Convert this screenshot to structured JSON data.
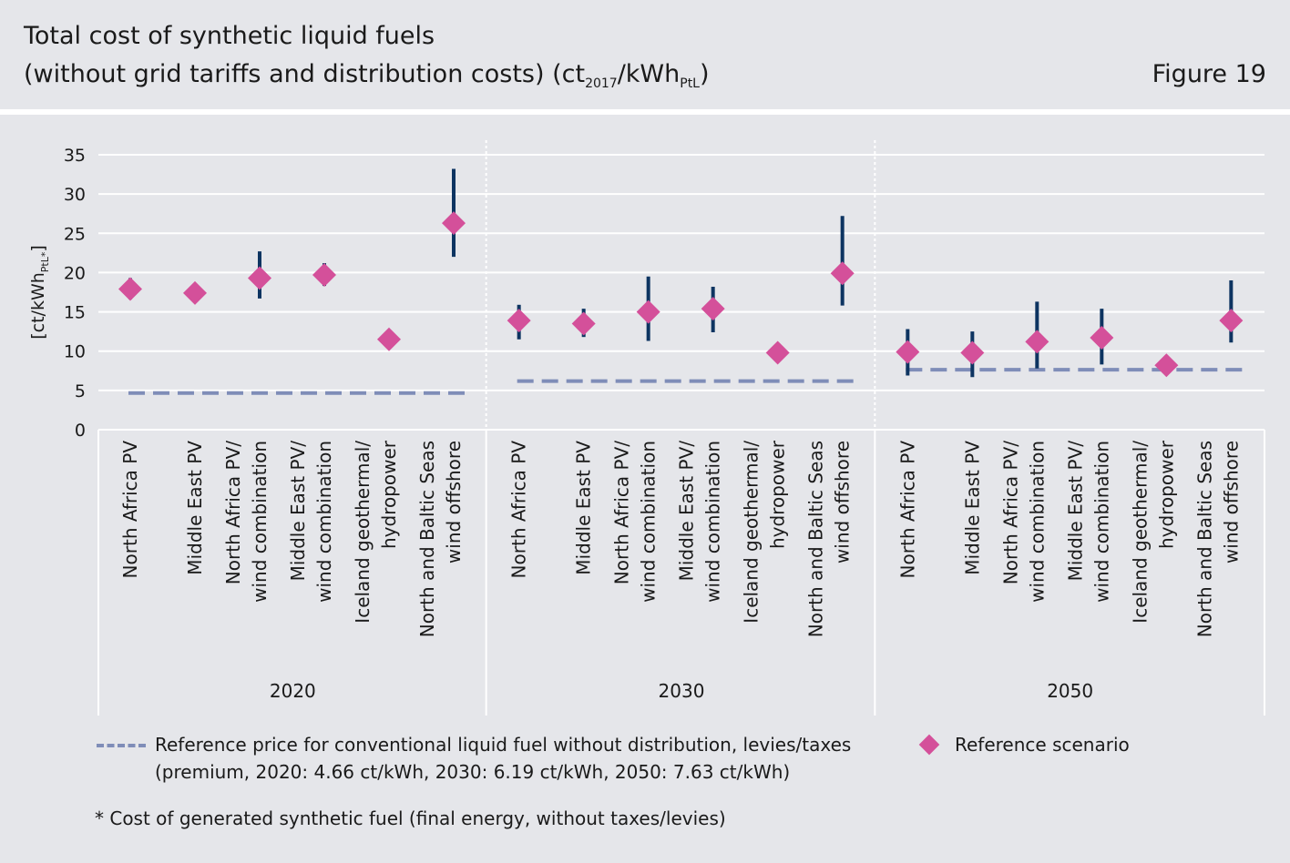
{
  "header": {
    "title_line1": "Total cost of synthetic liquid fuels",
    "title_line2_main": "(without grid tariffs and distribution costs) (ct",
    "title_line2_sub1": "2017",
    "title_line2_mid": "/kWh",
    "title_line2_sub2": "PtL",
    "title_line2_end": ")",
    "figure_label": "Figure 19"
  },
  "chart_data": {
    "type": "scatter",
    "ylabel": "[ct/kWhPtL*]",
    "ylim": [
      0,
      35
    ],
    "yticks": [
      0,
      5,
      10,
      15,
      20,
      25,
      30,
      35
    ],
    "grid": true,
    "groups": [
      {
        "year": "2020",
        "reference_price": 4.66,
        "categories": [
          {
            "label": [
              "North Africa PV"
            ],
            "value": 17.9,
            "low": 16.6,
            "high": 19.3
          },
          {
            "label": [
              "Middle East PV"
            ],
            "value": 17.4,
            "low": null,
            "high": null
          },
          {
            "label": [
              "North Africa PV/",
              "wind combination"
            ],
            "value": 19.3,
            "low": 16.7,
            "high": 22.7
          },
          {
            "label": [
              "Middle East PV/",
              "wind combination"
            ],
            "value": 19.7,
            "low": 18.3,
            "high": 21.2
          },
          {
            "label": [
              "Iceland geothermal/",
              "hydropower"
            ],
            "value": 11.5,
            "low": null,
            "high": null
          },
          {
            "label": [
              "North and Baltic Seas",
              "wind offshore"
            ],
            "value": 26.3,
            "low": 22.0,
            "high": 33.2
          }
        ]
      },
      {
        "year": "2030",
        "reference_price": 6.19,
        "categories": [
          {
            "label": [
              "North Africa PV"
            ],
            "value": 13.9,
            "low": 11.5,
            "high": 15.9
          },
          {
            "label": [
              "Middle East PV"
            ],
            "value": 13.5,
            "low": 11.8,
            "high": 15.4
          },
          {
            "label": [
              "North Africa PV/",
              "wind combination"
            ],
            "value": 15.0,
            "low": 11.3,
            "high": 19.5
          },
          {
            "label": [
              "Middle East PV/",
              "wind combination"
            ],
            "value": 15.4,
            "low": 12.4,
            "high": 18.2
          },
          {
            "label": [
              "Iceland geothermal/",
              "hydropower"
            ],
            "value": 9.8,
            "low": null,
            "high": null
          },
          {
            "label": [
              "North and Baltic Seas",
              "wind offshore"
            ],
            "value": 19.9,
            "low": 15.8,
            "high": 27.2
          }
        ]
      },
      {
        "year": "2050",
        "reference_price": 7.63,
        "categories": [
          {
            "label": [
              "North Africa PV"
            ],
            "value": 9.9,
            "low": 6.9,
            "high": 12.8
          },
          {
            "label": [
              "Middle East PV"
            ],
            "value": 9.8,
            "low": 6.7,
            "high": 12.5
          },
          {
            "label": [
              "North Africa PV/",
              "wind combination"
            ],
            "value": 11.2,
            "low": 7.8,
            "high": 16.3
          },
          {
            "label": [
              "Middle East PV/",
              "wind combination"
            ],
            "value": 11.7,
            "low": 8.3,
            "high": 15.4
          },
          {
            "label": [
              "Iceland geothermal/",
              "hydropower"
            ],
            "value": 8.2,
            "low": null,
            "high": null
          },
          {
            "label": [
              "North and Baltic Seas",
              "wind offshore"
            ],
            "value": 13.9,
            "low": 11.1,
            "high": 19.0
          }
        ]
      }
    ],
    "colors": {
      "marker": "#d4509a",
      "errorbar": "#0d3461",
      "reference": "#7f8db8",
      "grid": "#ffffff"
    }
  },
  "legend": {
    "reference_line1": "Reference price for conventional liquid fuel without distribution, levies/taxes",
    "reference_line2": "(premium, 2020: 4.66 ct/kWh, 2030: 6.19 ct/kWh, 2050: 7.63 ct/kWh)",
    "scenario": "Reference scenario"
  },
  "footnote": "* Cost of generated synthetic fuel (final energy, without taxes/levies)"
}
